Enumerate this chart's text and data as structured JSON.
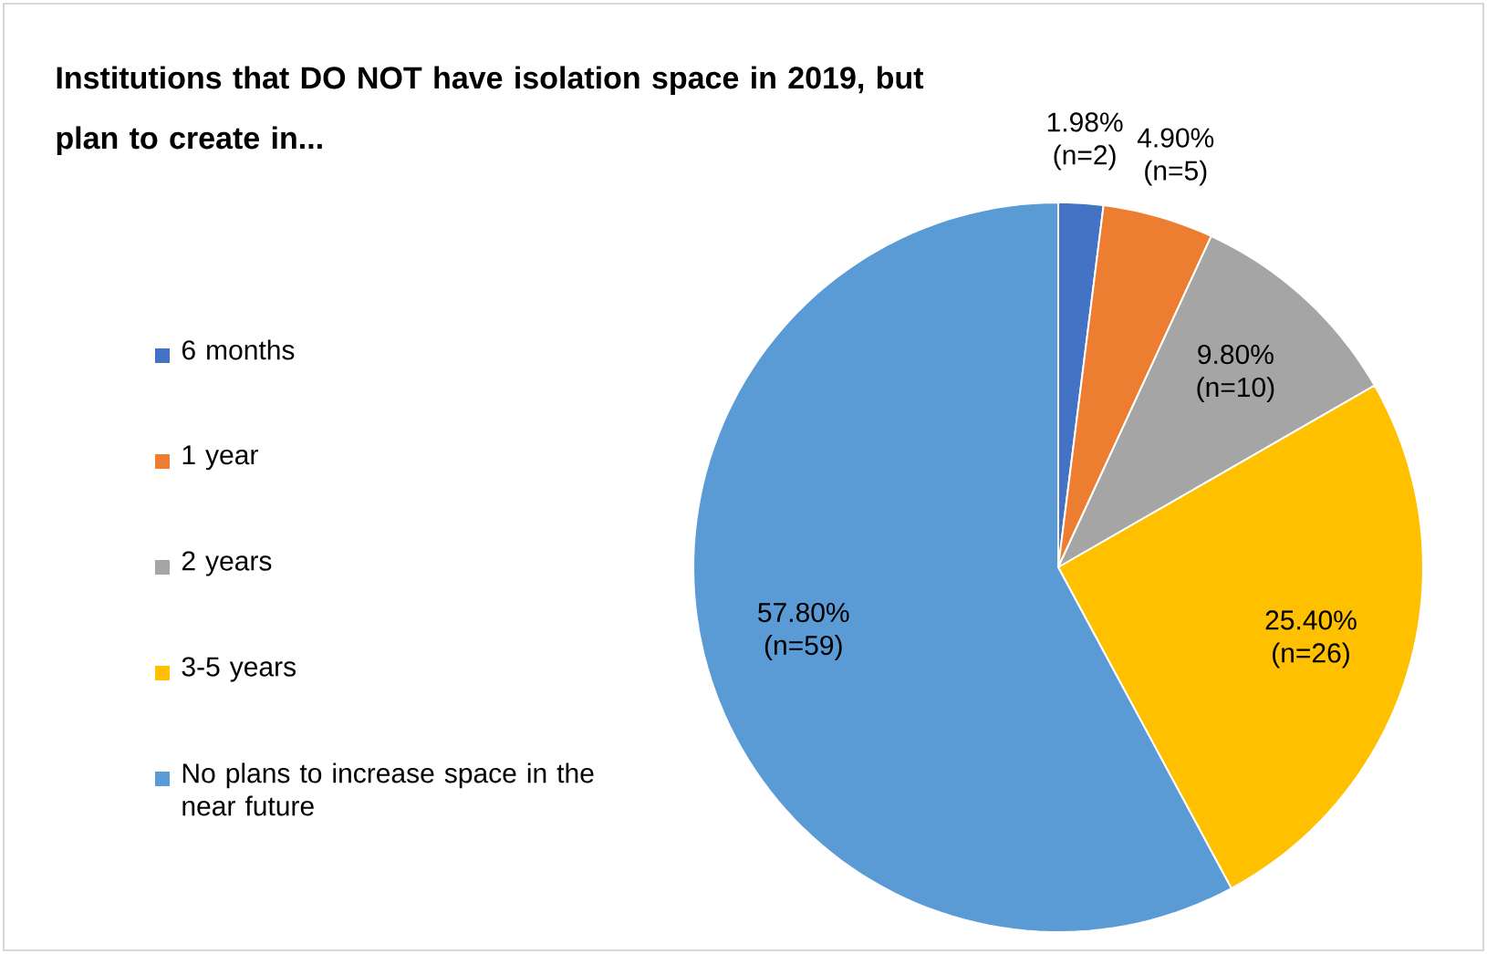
{
  "chart_data": {
    "type": "pie",
    "title": "Institutions that DO NOT have isolation space in 2019, but plan to create in...",
    "categories": [
      "6 months",
      "1 year",
      "2 years",
      "3-5 years",
      "No plans to increase space in the near future"
    ],
    "values": [
      1.98,
      4.9,
      9.8,
      25.4,
      57.8
    ],
    "value_labels": [
      "1.98% (n=2)",
      "4.90% (n=5)",
      "9.80% (n=10)",
      "25.40% (n=26)",
      "57.80% (n=59)"
    ],
    "colors": [
      "#4472c4",
      "#ed7d31",
      "#a5a5a5",
      "#ffc000",
      "#5b9bd5"
    ],
    "legend": "left"
  }
}
